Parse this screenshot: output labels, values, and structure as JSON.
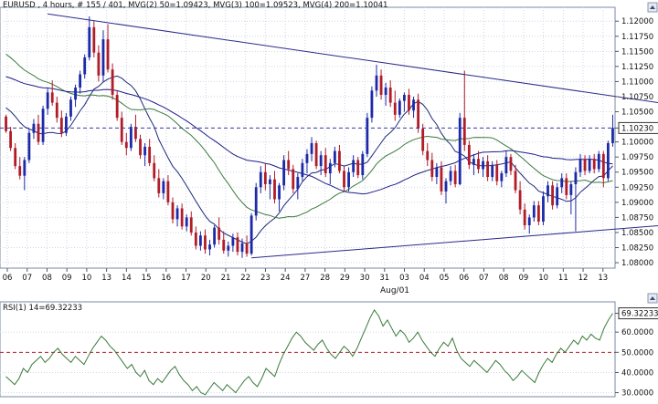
{
  "header": {
    "symbol": "EURUSD",
    "info": "EURUSD , 4 hours, # 155 / 401, MVG(2) 50=1.09423, MVG(3) 100=1.09523, MVG(4) 200=1.10041"
  },
  "rsi_header": {
    "label": "RSI(1) 14=69.32233"
  },
  "colors": {
    "background": "#ffffff",
    "grid": "#cfd6e4",
    "frame": "#7a8aa8",
    "bull_candle": "#1c2aa8",
    "bear_candle": "#b01c28",
    "ma50": "#1e2a7a",
    "ma100": "#3a7a3a",
    "ma200": "#1c1c8a",
    "trendline": "#2a2a8a",
    "price_line": "#3a3aa0",
    "rsi_line": "#3a7a3a",
    "rsi_level": "#b01c28"
  },
  "chart_data": [
    {
      "type": "candlestick",
      "title": "EURUSD , 4 hours",
      "y_ticks": [
        "1.12000",
        "1.11750",
        "1.11500",
        "1.11250",
        "1.11000",
        "1.10750",
        "1.10500",
        "1.10230",
        "1.10000",
        "1.09750",
        "1.09500",
        "1.09250",
        "1.09000",
        "1.08750",
        "1.08500",
        "1.08250",
        "1.08000"
      ],
      "ylim": [
        1.0791,
        1.1223
      ],
      "x_tick_labels": [
        "06",
        "07",
        "08",
        "09",
        "10",
        "13",
        "14",
        "15",
        "16",
        "17",
        "20",
        "21",
        "22",
        "23",
        "24",
        "27",
        "28",
        "29",
        "30",
        "31",
        "03",
        "04",
        "05",
        "06",
        "07",
        "08",
        "09",
        "10",
        "11",
        "12",
        "13"
      ],
      "x_month_label": "Aug/01",
      "current_price": 1.1023,
      "trendlines": [
        {
          "name": "upper",
          "from": [
            9,
            1.1212
          ],
          "to": [
            157,
            1.1047
          ]
        },
        {
          "name": "lower",
          "from": [
            53,
            1.0808
          ],
          "to": [
            157,
            1.0871
          ]
        }
      ],
      "moving_averages": [
        {
          "name": "MVG(2) 50",
          "last": 1.09423
        },
        {
          "name": "MVG(3) 100",
          "last": 1.09523
        },
        {
          "name": "MVG(4) 200",
          "last": 1.10041
        }
      ],
      "ohlc": [
        [
          1.1042,
          1.1045,
          1.1015,
          1.1018
        ],
        [
          1.1018,
          1.1025,
          1.0985,
          1.099
        ],
        [
          1.099,
          1.0998,
          1.0955,
          1.096
        ],
        [
          1.096,
          1.0975,
          1.0938,
          1.0944
        ],
        [
          1.0944,
          1.0975,
          1.092,
          1.097
        ],
        [
          1.097,
          1.102,
          1.0965,
          1.1015
        ],
        [
          1.1015,
          1.1038,
          1.1005,
          1.103
        ],
        [
          1.103,
          1.1045,
          1.0995,
          1.1
        ],
        [
          1.1,
          1.106,
          1.0995,
          1.1055
        ],
        [
          1.1055,
          1.1088,
          1.1045,
          1.1082
        ],
        [
          1.1082,
          1.1102,
          1.106,
          1.1065
        ],
        [
          1.1065,
          1.1075,
          1.1032,
          1.104
        ],
        [
          1.104,
          1.1052,
          1.1008,
          1.1015
        ],
        [
          1.1015,
          1.1048,
          1.101,
          1.1042
        ],
        [
          1.1042,
          1.1075,
          1.1035,
          1.107
        ],
        [
          1.107,
          1.1095,
          1.1058,
          1.109
        ],
        [
          1.109,
          1.1118,
          1.108,
          1.1112
        ],
        [
          1.1112,
          1.1145,
          1.1105,
          1.114
        ],
        [
          1.114,
          1.1208,
          1.1135,
          1.119
        ],
        [
          1.119,
          1.12,
          1.114,
          1.1148
        ],
        [
          1.1148,
          1.116,
          1.11,
          1.111
        ],
        [
          1.111,
          1.1185,
          1.11,
          1.117
        ],
        [
          1.117,
          1.1195,
          1.1115,
          1.112
        ],
        [
          1.112,
          1.113,
          1.107,
          1.1078
        ],
        [
          1.1078,
          1.1085,
          1.1035,
          1.104
        ],
        [
          1.104,
          1.105,
          1.0995,
          1.1
        ],
        [
          1.1,
          1.1015,
          1.0978,
          1.099
        ],
        [
          1.099,
          1.103,
          1.0985,
          1.1025
        ],
        [
          1.1025,
          1.1045,
          1.1,
          1.1005
        ],
        [
          1.1005,
          1.1012,
          1.0972,
          1.0978
        ],
        [
          1.0978,
          1.0998,
          1.096,
          1.0992
        ],
        [
          1.0992,
          1.1005,
          1.096,
          1.0965
        ],
        [
          1.0965,
          1.0978,
          1.0935,
          1.094
        ],
        [
          1.094,
          1.0955,
          1.0908,
          1.0915
        ],
        [
          1.0915,
          1.094,
          1.0905,
          1.0935
        ],
        [
          1.0935,
          1.0945,
          1.0895,
          1.09
        ],
        [
          1.09,
          1.0908,
          1.0865,
          1.0872
        ],
        [
          1.0872,
          1.0895,
          1.086,
          1.089
        ],
        [
          1.089,
          1.0898,
          1.0855,
          1.086
        ],
        [
          1.086,
          1.088,
          1.0852,
          1.0875
        ],
        [
          1.0875,
          1.0885,
          1.0845,
          1.085
        ],
        [
          1.085,
          1.086,
          1.0822,
          1.0828
        ],
        [
          1.0828,
          1.0852,
          1.082,
          1.0845
        ],
        [
          1.0845,
          1.0855,
          1.0815,
          1.0822
        ],
        [
          1.0822,
          1.0838,
          1.0812,
          1.083
        ],
        [
          1.083,
          1.0862,
          1.0825,
          1.0858
        ],
        [
          1.0858,
          1.0875,
          1.083,
          1.0838
        ],
        [
          1.0838,
          1.0852,
          1.0815,
          1.082
        ],
        [
          1.082,
          1.0835,
          1.081,
          1.0828
        ],
        [
          1.0828,
          1.0848,
          1.0818,
          1.0842
        ],
        [
          1.0842,
          1.085,
          1.0812,
          1.0818
        ],
        [
          1.0818,
          1.084,
          1.0808,
          1.0832
        ],
        [
          1.0832,
          1.0845,
          1.081,
          1.0815
        ],
        [
          1.0815,
          1.0882,
          1.0812,
          1.0878
        ],
        [
          1.0878,
          1.0932,
          1.087,
          1.0925
        ],
        [
          1.0925,
          1.096,
          1.0915,
          1.095
        ],
        [
          1.095,
          1.0965,
          1.092,
          1.093
        ],
        [
          1.093,
          1.0945,
          1.0905,
          1.0938
        ],
        [
          1.0938,
          1.0952,
          1.0898,
          1.0905
        ],
        [
          1.0905,
          1.0932,
          1.0885,
          1.0928
        ],
        [
          1.0928,
          1.0978,
          1.092,
          1.097
        ],
        [
          1.097,
          1.0985,
          1.0945,
          1.0955
        ],
        [
          1.0955,
          1.0962,
          1.0915,
          1.0922
        ],
        [
          1.0922,
          1.0948,
          1.0905,
          1.0942
        ],
        [
          1.0942,
          1.0972,
          1.0935,
          1.0965
        ],
        [
          1.0965,
          1.0988,
          1.0948,
          1.098
        ],
        [
          1.098,
          1.1008,
          1.0968,
          1.0998
        ],
        [
          1.0998,
          1.1002,
          1.0955,
          1.096
        ],
        [
          1.096,
          1.0985,
          1.0945,
          1.0978
        ],
        [
          1.0978,
          1.099,
          1.0942,
          1.0948
        ],
        [
          1.0948,
          1.0972,
          1.093,
          1.0965
        ],
        [
          1.0965,
          1.0992,
          1.0958,
          1.0985
        ],
        [
          1.0985,
          1.0995,
          1.0948,
          1.0952
        ],
        [
          1.0952,
          1.096,
          1.0918,
          1.0925
        ],
        [
          1.0925,
          1.0958,
          1.0918,
          1.095
        ],
        [
          1.095,
          1.0978,
          1.0942,
          1.097
        ],
        [
          1.097,
          1.0975,
          1.094,
          1.0945
        ],
        [
          1.0945,
          1.0985,
          1.0938,
          1.098
        ],
        [
          1.098,
          1.1048,
          1.0975,
          1.104
        ],
        [
          1.104,
          1.1092,
          1.1032,
          1.1085
        ],
        [
          1.1085,
          1.1128,
          1.1075,
          1.111
        ],
        [
          1.111,
          1.112,
          1.107,
          1.1078
        ],
        [
          1.1078,
          1.1098,
          1.106,
          1.109
        ],
        [
          1.109,
          1.1102,
          1.1058,
          1.1065
        ],
        [
          1.1065,
          1.1085,
          1.1035,
          1.1045
        ],
        [
          1.1045,
          1.1072,
          1.104,
          1.1068
        ],
        [
          1.1068,
          1.1082,
          1.105,
          1.1078
        ],
        [
          1.1078,
          1.1088,
          1.1045,
          1.1052
        ],
        [
          1.1052,
          1.1075,
          1.104,
          1.107
        ],
        [
          1.107,
          1.108,
          1.1015,
          1.1022
        ],
        [
          1.1022,
          1.103,
          1.0978,
          1.0985
        ],
        [
          1.0985,
          1.0998,
          1.096,
          1.097
        ],
        [
          1.097,
          1.0982,
          1.0935,
          1.0942
        ],
        [
          1.0942,
          1.0965,
          1.093,
          1.0958
        ],
        [
          1.0958,
          1.0968,
          1.0912,
          1.0918
        ],
        [
          1.0918,
          1.094,
          1.0898,
          1.0935
        ],
        [
          1.0935,
          1.096,
          1.0928,
          1.0952
        ],
        [
          1.0952,
          1.0962,
          1.0925,
          1.093
        ],
        [
          1.093,
          1.1048,
          1.0928,
          1.104
        ],
        [
          1.104,
          1.1118,
          1.0985,
          1.0995
        ],
        [
          1.0995,
          1.1002,
          1.0955,
          1.0962
        ],
        [
          1.0962,
          1.098,
          1.0945,
          1.0972
        ],
        [
          1.0972,
          1.0985,
          1.0948,
          1.0955
        ],
        [
          1.0955,
          1.0975,
          1.0942,
          1.0968
        ],
        [
          1.0968,
          1.0978,
          1.0935,
          1.0942
        ],
        [
          1.0942,
          1.0968,
          1.0935,
          1.0962
        ],
        [
          1.0962,
          1.097,
          1.0928,
          1.0935
        ],
        [
          1.0935,
          1.0952,
          1.0925,
          1.0948
        ],
        [
          1.0948,
          1.0985,
          1.0942,
          1.0975
        ],
        [
          1.0975,
          1.098,
          1.0945,
          1.0952
        ],
        [
          1.0952,
          1.0962,
          1.0915,
          1.092
        ],
        [
          1.092,
          1.0935,
          1.088,
          1.0888
        ],
        [
          1.0888,
          1.0898,
          1.0855,
          1.0862
        ],
        [
          1.0862,
          1.088,
          1.0848,
          1.0875
        ],
        [
          1.0875,
          1.0902,
          1.0868,
          1.0895
        ],
        [
          1.0895,
          1.0902,
          1.0862,
          1.0868
        ],
        [
          1.0868,
          1.0918,
          1.0862,
          1.091
        ],
        [
          1.091,
          1.0935,
          1.09,
          1.0928
        ],
        [
          1.0928,
          1.0935,
          1.0888,
          1.0895
        ],
        [
          1.0895,
          1.0932,
          1.089,
          1.0925
        ],
        [
          1.0925,
          1.0948,
          1.0915,
          1.094
        ],
        [
          1.094,
          1.0948,
          1.0905,
          1.0912
        ],
        [
          1.0912,
          1.0935,
          1.088,
          1.093
        ],
        [
          1.093,
          1.0958,
          1.0852,
          1.095
        ],
        [
          1.095,
          1.098,
          1.0942,
          1.0972
        ],
        [
          1.0972,
          1.0978,
          1.0945,
          1.0952
        ],
        [
          1.0952,
          1.0978,
          1.0948,
          1.0972
        ],
        [
          1.0972,
          1.098,
          1.0948,
          1.0955
        ],
        [
          1.0955,
          1.0985,
          1.095,
          1.098
        ],
        [
          1.098,
          1.0985,
          1.0925,
          1.094
        ],
        [
          1.094,
          1.1002,
          1.0935,
          1.0998
        ],
        [
          1.0998,
          1.1045,
          1.0992,
          1.1023
        ]
      ]
    },
    {
      "type": "line",
      "title": "RSI(1) 14",
      "value_label": "69.32233",
      "y_ticks": [
        "69.32233",
        "60.0000",
        "50.0000",
        "40.0000",
        "30.0000"
      ],
      "ylim": [
        28,
        75
      ],
      "level": 50,
      "values": [
        38,
        36,
        34,
        37,
        42,
        40,
        44,
        46,
        48,
        45,
        47,
        50,
        52,
        49,
        47,
        45,
        48,
        46,
        44,
        48,
        52,
        55,
        58,
        56,
        53,
        51,
        48,
        45,
        42,
        44,
        40,
        38,
        41,
        36,
        34,
        37,
        35,
        38,
        41,
        43,
        39,
        36,
        34,
        31,
        33,
        30,
        29,
        32,
        35,
        33,
        31,
        34,
        32,
        30,
        33,
        36,
        38,
        35,
        33,
        37,
        42,
        40,
        38,
        44,
        49,
        53,
        57,
        60,
        58,
        55,
        53,
        51,
        54,
        56,
        52,
        49,
        47,
        50,
        53,
        51,
        48,
        52,
        57,
        62,
        67,
        71,
        68,
        63,
        66,
        62,
        58,
        61,
        59,
        55,
        57,
        60,
        56,
        53,
        50,
        48,
        52,
        55,
        53,
        57,
        51,
        47,
        45,
        43,
        46,
        44,
        42,
        40,
        43,
        46,
        44,
        41,
        39,
        36,
        38,
        41,
        39,
        37,
        35,
        40,
        44,
        47,
        45,
        49,
        52,
        50,
        53,
        56,
        54,
        58,
        56,
        59,
        57,
        56,
        62,
        66,
        69.3
      ]
    }
  ]
}
